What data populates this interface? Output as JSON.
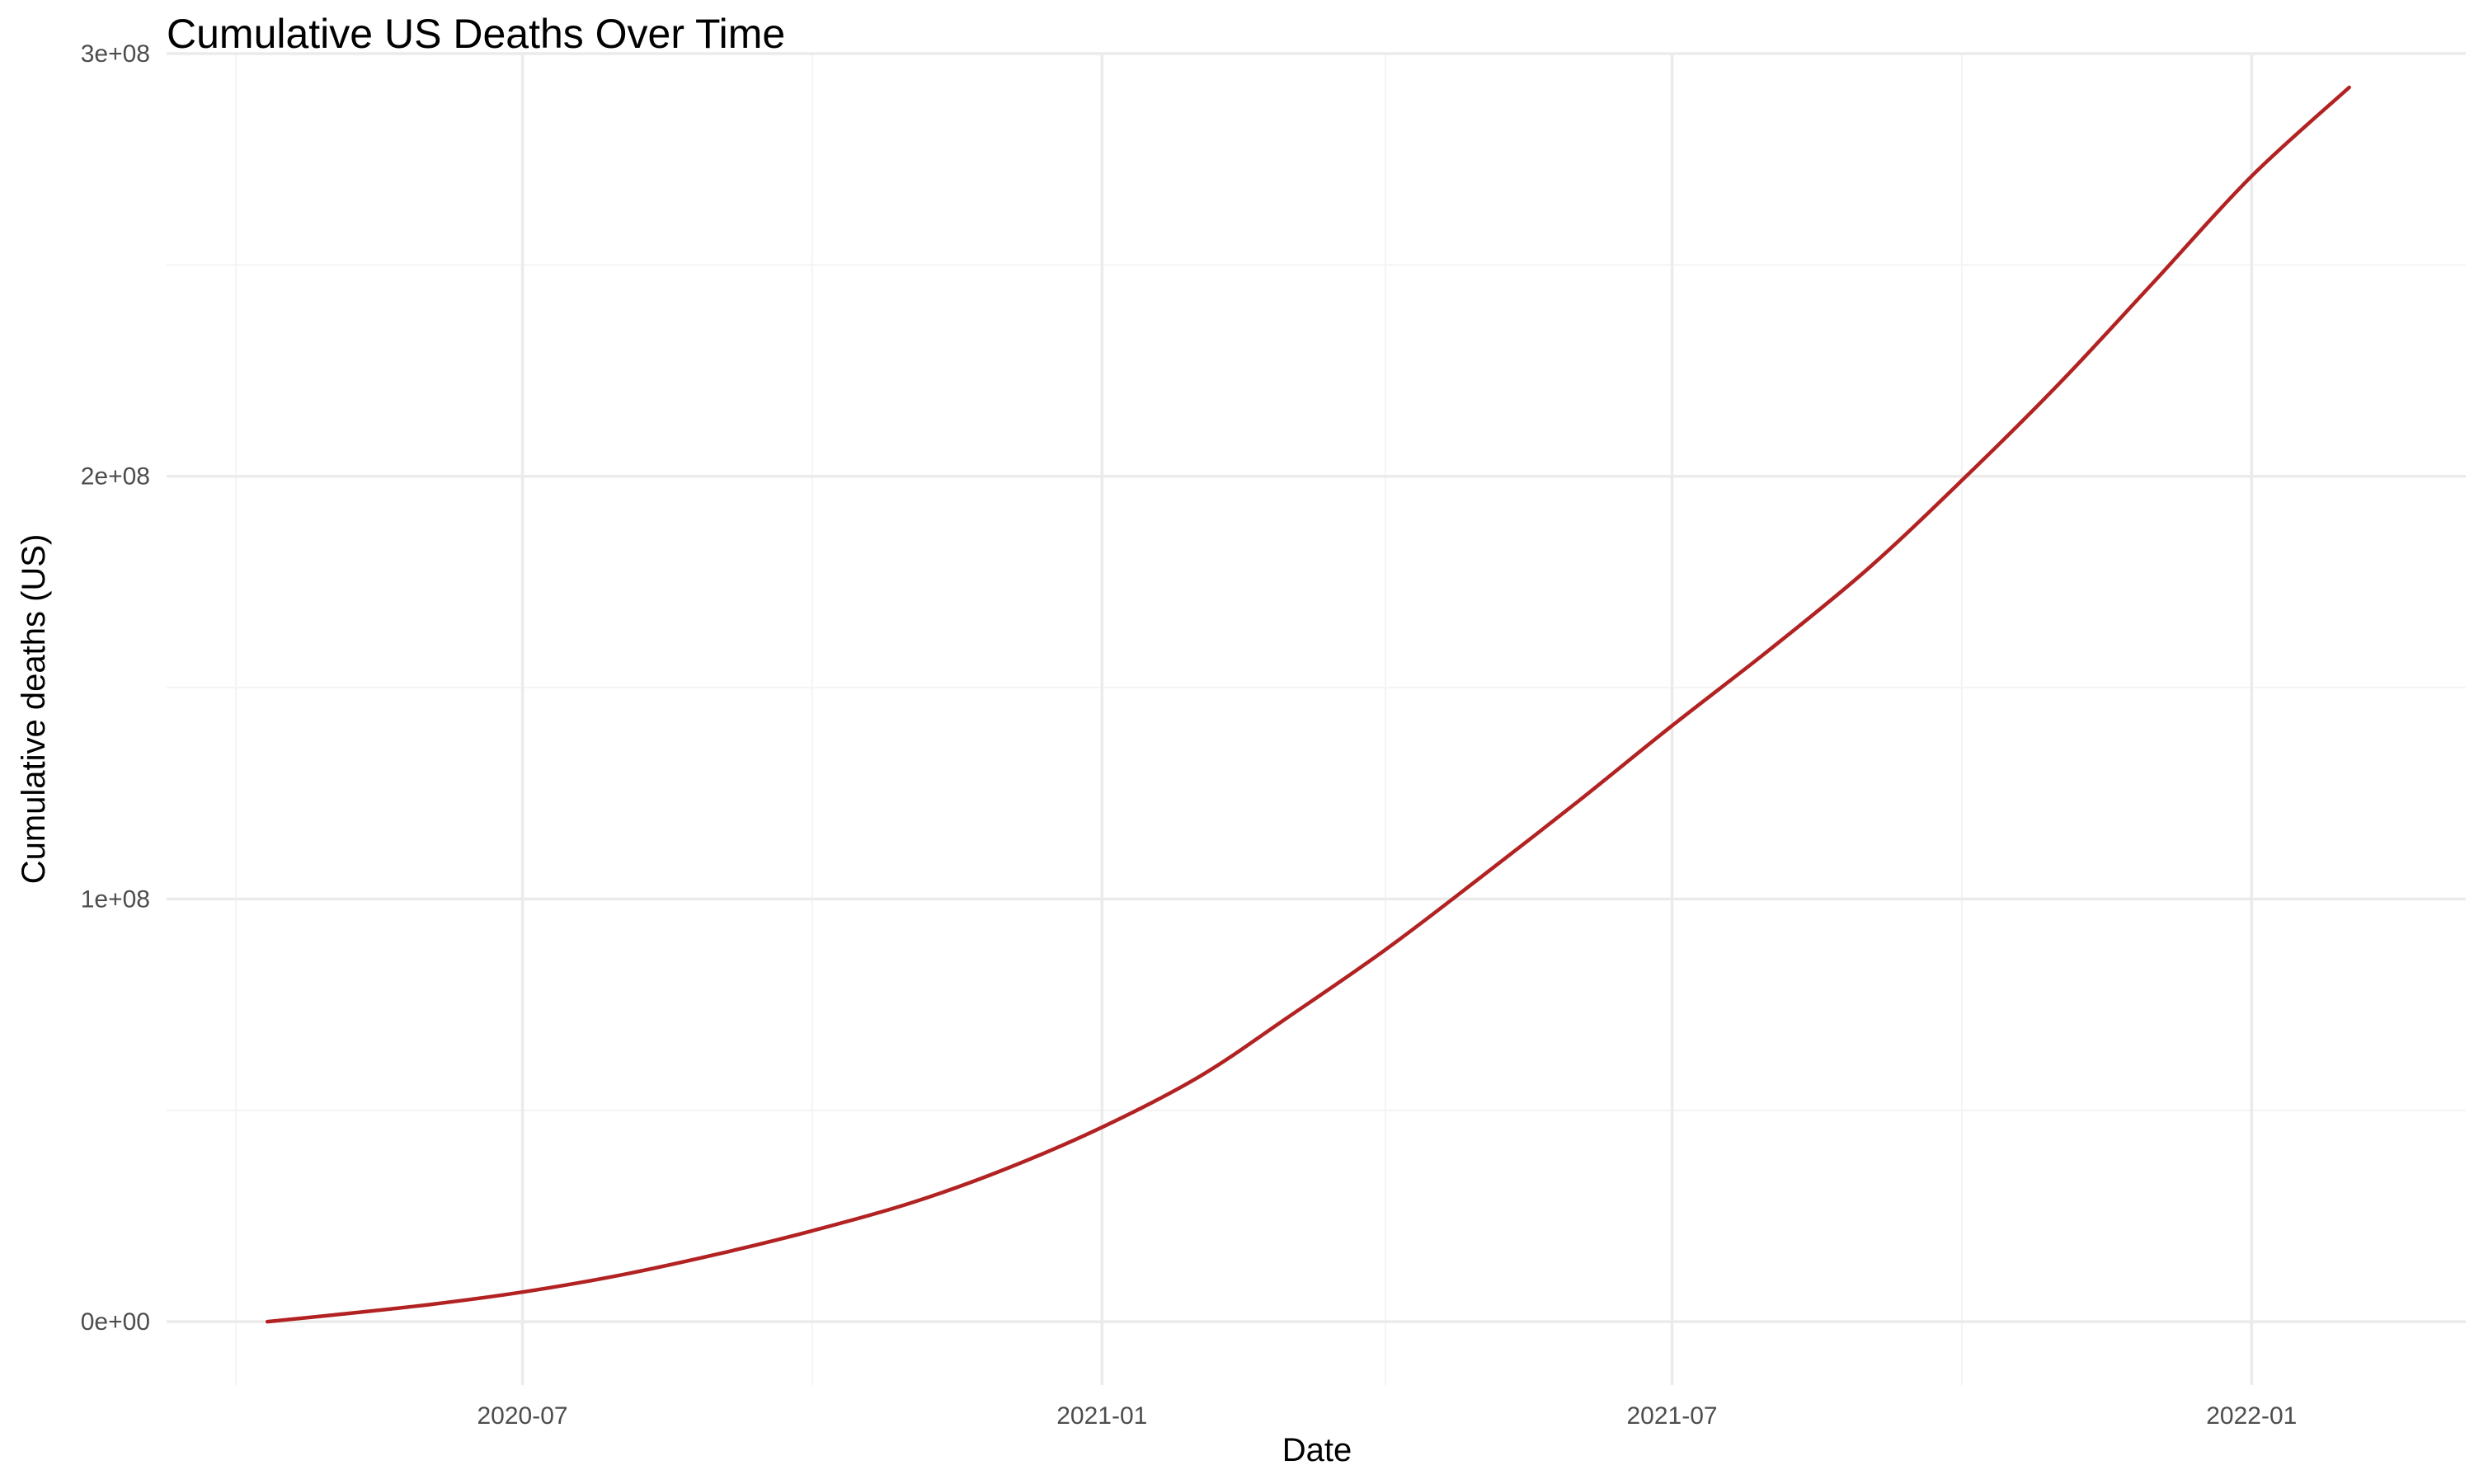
{
  "chart_data": {
    "type": "line",
    "title": "Cumulative US Deaths Over Time",
    "xlabel": "Date",
    "ylabel": "Cumulative deaths (US)",
    "x_axis": {
      "type": "date",
      "range": [
        "2020-03-10",
        "2022-03-10"
      ],
      "ticks": [
        "2020-07-01",
        "2021-01-01",
        "2021-07-01",
        "2022-01-01"
      ],
      "tick_labels": [
        "2020-07",
        "2021-01",
        "2021-07",
        "2022-01"
      ],
      "minor_ticks": [
        "2020-04-01",
        "2020-10-01",
        "2021-04-01",
        "2021-10-01"
      ]
    },
    "y_axis": {
      "range": [
        -15000000,
        300000000
      ],
      "ticks": [
        0,
        100000000,
        200000000,
        300000000
      ],
      "tick_labels": [
        "0e+00",
        "1e+08",
        "2e+08",
        "3e+08"
      ],
      "minor_ticks": [
        50000000,
        150000000,
        250000000
      ]
    },
    "grid": true,
    "legend": "none",
    "colors": {
      "line": "#b22222",
      "background": "#ffffff"
    },
    "series": [
      {
        "color": "#b22222",
        "points": [
          {
            "x": "2020-04-11",
            "y": 0
          },
          {
            "x": "2020-05-01",
            "y": 1500000
          },
          {
            "x": "2020-06-01",
            "y": 4000000
          },
          {
            "x": "2020-07-01",
            "y": 7000000
          },
          {
            "x": "2020-08-01",
            "y": 11000000
          },
          {
            "x": "2020-09-01",
            "y": 16000000
          },
          {
            "x": "2020-10-01",
            "y": 21500000
          },
          {
            "x": "2020-11-01",
            "y": 28000000
          },
          {
            "x": "2020-12-01",
            "y": 36000000
          },
          {
            "x": "2021-01-01",
            "y": 46000000
          },
          {
            "x": "2021-02-01",
            "y": 58000000
          },
          {
            "x": "2021-03-01",
            "y": 72000000
          },
          {
            "x": "2021-04-01",
            "y": 88000000
          },
          {
            "x": "2021-05-01",
            "y": 105000000
          },
          {
            "x": "2021-06-01",
            "y": 123000000
          },
          {
            "x": "2021-07-01",
            "y": 141000000
          },
          {
            "x": "2021-08-01",
            "y": 159000000
          },
          {
            "x": "2021-09-01",
            "y": 178000000
          },
          {
            "x": "2021-10-01",
            "y": 199000000
          },
          {
            "x": "2021-11-01",
            "y": 222000000
          },
          {
            "x": "2021-12-01",
            "y": 246000000
          },
          {
            "x": "2022-01-01",
            "y": 271000000
          },
          {
            "x": "2022-02-01",
            "y": 292000000
          }
        ]
      }
    ]
  }
}
